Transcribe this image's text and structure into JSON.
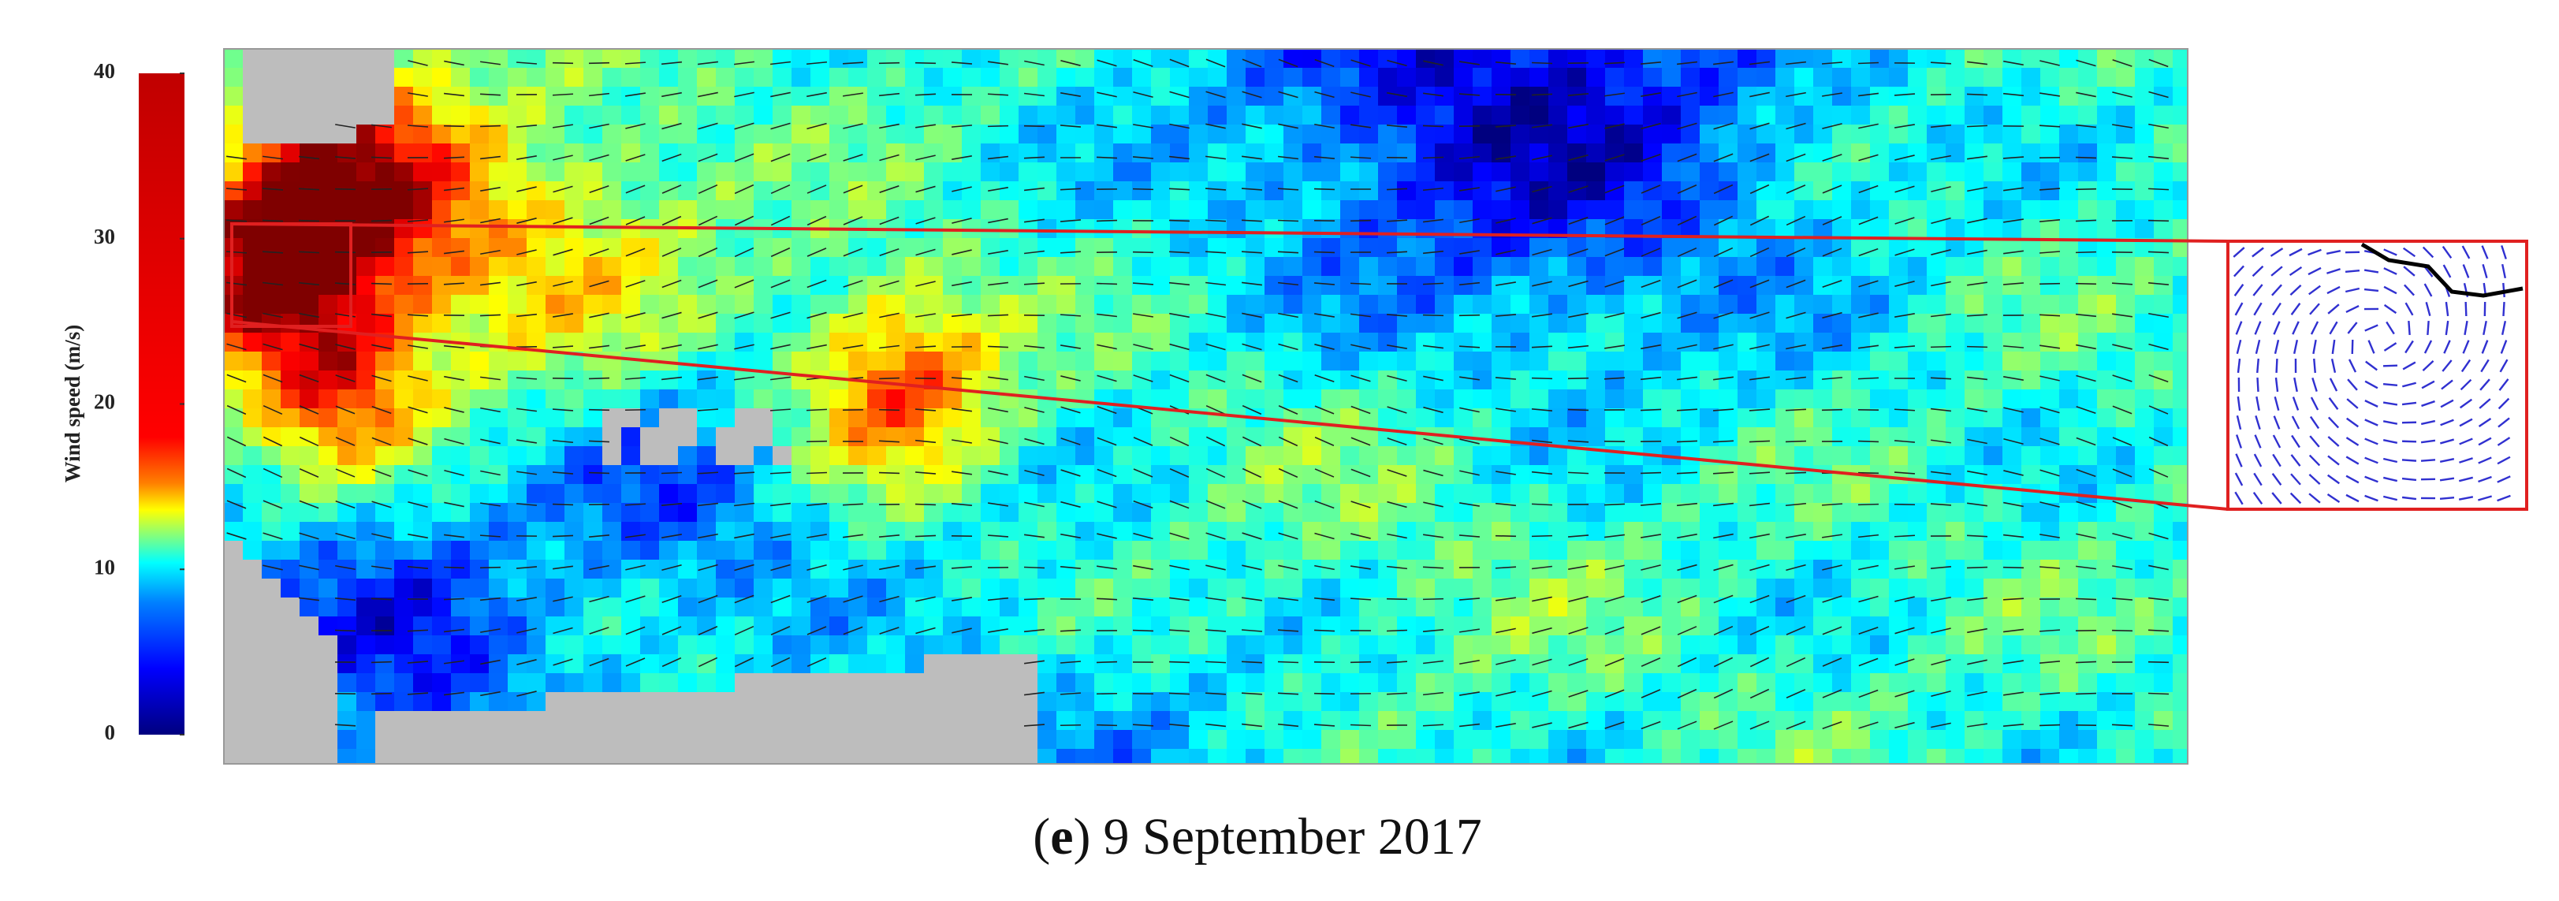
{
  "colorbar": {
    "label": "Wind speed (m/s)",
    "lim": [
      0,
      40
    ],
    "ticks": [
      0,
      10,
      20,
      30,
      40
    ]
  },
  "caption": {
    "open": "(",
    "label": "e",
    "close": ")",
    "text": "9 September 2017"
  }
}
